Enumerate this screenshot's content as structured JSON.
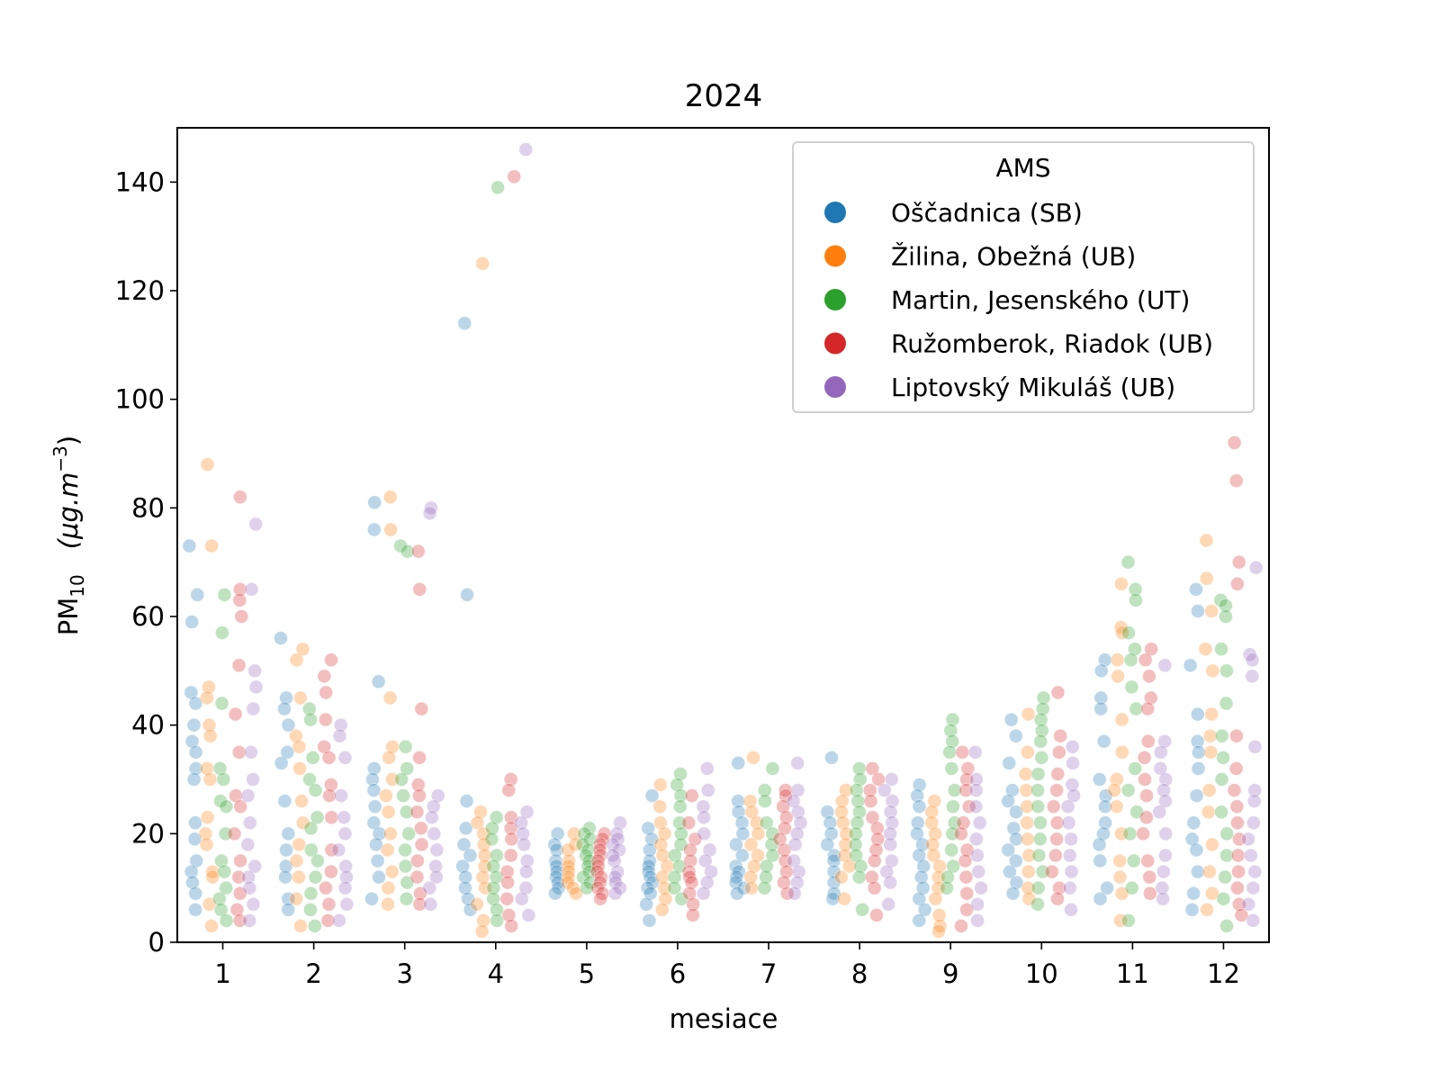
{
  "chart_data": {
    "type": "scatter",
    "subtype": "stripplot",
    "title": "2024",
    "xlabel": "mesiace",
    "ylabel_main": "PM",
    "ylabel_sub": "10",
    "ylabel_units": "(μg.m",
    "ylabel_units_exp": "−3",
    "ylabel_units_close": ")",
    "categories": [
      "1",
      "2",
      "3",
      "4",
      "5",
      "6",
      "7",
      "8",
      "9",
      "10",
      "11",
      "12"
    ],
    "ylim": [
      0,
      150
    ],
    "yticks": [
      0,
      20,
      40,
      60,
      80,
      100,
      120,
      140
    ],
    "grid": false,
    "legend": {
      "title": "AMS",
      "placement": "top-right"
    },
    "series": [
      {
        "name": "Oščadnica (SB)",
        "color": "#1f77b4",
        "values": [
          [
            73,
            64,
            59,
            46,
            44,
            40,
            37,
            35,
            32,
            30,
            22,
            19,
            15,
            13,
            11,
            9,
            6
          ],
          [
            56,
            45,
            43,
            40,
            35,
            33,
            26,
            20,
            17,
            14,
            12,
            8,
            6
          ],
          [
            81,
            76,
            48,
            32,
            30,
            28,
            25,
            22,
            20,
            18,
            15,
            12,
            8
          ],
          [
            114,
            64,
            26,
            21,
            18,
            16,
            14,
            12,
            10,
            8,
            6
          ],
          [
            20,
            18,
            17,
            15,
            14,
            13,
            12,
            11,
            10,
            9
          ],
          [
            27,
            21,
            19,
            17,
            15,
            14,
            13,
            12,
            11,
            10,
            9,
            7,
            4
          ],
          [
            33,
            26,
            24,
            22,
            20,
            18,
            16,
            14,
            13,
            12,
            11,
            10,
            9
          ],
          [
            34,
            24,
            22,
            20,
            18,
            16,
            15,
            13,
            11,
            9,
            8
          ],
          [
            29,
            27,
            25,
            22,
            20,
            18,
            16,
            14,
            12,
            10,
            8,
            6,
            4
          ],
          [
            41,
            38,
            33,
            28,
            26,
            24,
            21,
            19,
            17,
            15,
            13,
            11,
            9
          ],
          [
            52,
            50,
            45,
            43,
            37,
            30,
            27,
            25,
            22,
            20,
            18,
            15,
            10,
            8
          ],
          [
            65,
            61,
            51,
            42,
            37,
            35,
            32,
            27,
            22,
            19,
            17,
            13,
            9,
            6
          ]
        ]
      },
      {
        "name": "Žilina, Obežná (UB)",
        "color": "#ff7f0e",
        "values": [
          [
            88,
            73,
            47,
            45,
            40,
            38,
            32,
            30,
            23,
            20,
            18,
            13,
            12,
            7,
            3
          ],
          [
            54,
            52,
            45,
            38,
            36,
            32,
            26,
            22,
            18,
            15,
            12,
            8,
            3
          ],
          [
            82,
            76,
            45,
            36,
            34,
            30,
            27,
            24,
            20,
            17,
            13,
            10,
            7
          ],
          [
            125,
            24,
            22,
            20,
            18,
            16,
            14,
            12,
            10,
            7,
            4,
            2
          ],
          [
            20,
            18,
            17,
            15,
            14,
            13,
            12,
            11,
            10,
            9
          ],
          [
            29,
            25,
            22,
            20,
            18,
            16,
            14,
            12,
            10,
            8,
            6
          ],
          [
            34,
            26,
            24,
            22,
            20,
            18,
            16,
            14,
            12,
            10
          ],
          [
            28,
            26,
            24,
            22,
            20,
            18,
            16,
            14,
            12,
            8
          ],
          [
            26,
            24,
            22,
            20,
            18,
            16,
            14,
            12,
            10,
            8,
            5,
            3,
            2
          ],
          [
            42,
            35,
            31,
            28,
            25,
            22,
            19,
            16,
            13,
            10,
            8
          ],
          [
            66,
            58,
            57,
            52,
            49,
            41,
            35,
            30,
            28,
            25,
            20,
            15,
            12,
            9,
            4
          ],
          [
            74,
            67,
            61,
            54,
            50,
            42,
            38,
            35,
            28,
            24,
            18,
            13,
            9,
            6
          ]
        ]
      },
      {
        "name": "Martin, Jesenského (UT)",
        "color": "#2ca02c",
        "values": [
          [
            64,
            57,
            44,
            32,
            30,
            26,
            25,
            20,
            15,
            13,
            10,
            8,
            6,
            4
          ],
          [
            43,
            41,
            34,
            30,
            28,
            23,
            21,
            17,
            15,
            12,
            9,
            6,
            3
          ],
          [
            73,
            72,
            36,
            32,
            30,
            27,
            24,
            20,
            17,
            14,
            11,
            8
          ],
          [
            139,
            23,
            21,
            19,
            16,
            14,
            12,
            10,
            8,
            6,
            4
          ],
          [
            21,
            20,
            19,
            18,
            17,
            16,
            15,
            14,
            13,
            12,
            11,
            10
          ],
          [
            31,
            29,
            27,
            25,
            22,
            20,
            18,
            16,
            14,
            12,
            10,
            8
          ],
          [
            32,
            28,
            26,
            22,
            20,
            18,
            16,
            14,
            12,
            10
          ],
          [
            32,
            30,
            28,
            26,
            24,
            22,
            20,
            18,
            16,
            14,
            12,
            6
          ],
          [
            41,
            39,
            37,
            35,
            32,
            28,
            25,
            22,
            20,
            17,
            14,
            12,
            10
          ],
          [
            45,
            43,
            41,
            39,
            37,
            34,
            31,
            28,
            25,
            22,
            19,
            16,
            13,
            10,
            7
          ],
          [
            70,
            65,
            63,
            57,
            54,
            52,
            47,
            43,
            32,
            28,
            24,
            20,
            15,
            10,
            4
          ],
          [
            63,
            62,
            60,
            54,
            50,
            44,
            38,
            34,
            30,
            24,
            20,
            16,
            12,
            8,
            3
          ]
        ]
      },
      {
        "name": "Ružomberok, Riadok (UB)",
        "color": "#d62728",
        "values": [
          [
            82,
            65,
            63,
            60,
            51,
            42,
            35,
            27,
            25,
            20,
            15,
            12,
            9,
            6,
            4
          ],
          [
            52,
            49,
            46,
            41,
            36,
            34,
            29,
            27,
            23,
            17,
            13,
            10,
            7,
            4
          ],
          [
            72,
            65,
            43,
            34,
            29,
            27,
            24,
            21,
            18,
            15,
            12,
            9,
            7
          ],
          [
            141,
            30,
            28,
            23,
            21,
            19,
            16,
            13,
            11,
            8,
            5,
            3
          ],
          [
            20,
            19,
            18,
            17,
            16,
            15,
            14,
            13,
            12,
            11,
            10,
            9,
            8
          ],
          [
            27,
            22,
            19,
            17,
            15,
            13,
            12,
            11,
            9,
            7,
            5
          ],
          [
            28,
            27,
            25,
            23,
            21,
            19,
            17,
            15,
            13,
            11,
            9
          ],
          [
            32,
            30,
            28,
            26,
            23,
            21,
            19,
            17,
            15,
            12,
            10,
            5
          ],
          [
            35,
            32,
            30,
            28,
            25,
            22,
            20,
            17,
            15,
            12,
            9,
            6,
            3
          ],
          [
            46,
            38,
            35,
            31,
            28,
            25,
            22,
            19,
            16,
            13,
            10,
            8
          ],
          [
            54,
            52,
            49,
            45,
            43,
            37,
            34,
            30,
            27,
            23,
            20,
            15,
            12,
            9
          ],
          [
            92,
            85,
            70,
            66,
            38,
            32,
            28,
            25,
            22,
            19,
            16,
            13,
            10,
            7,
            5
          ]
        ]
      },
      {
        "name": "Liptovský Mikuláš (UB)",
        "color": "#9467bd",
        "values": [
          [
            77,
            65,
            50,
            47,
            43,
            35,
            30,
            27,
            22,
            18,
            14,
            12,
            10,
            7,
            4
          ],
          [
            40,
            38,
            34,
            27,
            23,
            20,
            17,
            14,
            12,
            10,
            7,
            4
          ],
          [
            80,
            79,
            27,
            25,
            23,
            20,
            17,
            14,
            12,
            10,
            7
          ],
          [
            146,
            24,
            22,
            20,
            18,
            15,
            13,
            10,
            8,
            5
          ],
          [
            22,
            20,
            19,
            18,
            17,
            16,
            15,
            13,
            12,
            11,
            10,
            9
          ],
          [
            32,
            28,
            25,
            23,
            20,
            17,
            15,
            13,
            11,
            9
          ],
          [
            33,
            28,
            26,
            24,
            22,
            20,
            18,
            15,
            13,
            11,
            9
          ],
          [
            30,
            28,
            26,
            24,
            22,
            20,
            18,
            15,
            13,
            11,
            7
          ],
          [
            35,
            30,
            28,
            25,
            22,
            19,
            16,
            13,
            10,
            7,
            4
          ],
          [
            36,
            33,
            29,
            27,
            25,
            22,
            19,
            16,
            13,
            10,
            6
          ],
          [
            51,
            37,
            35,
            32,
            30,
            28,
            26,
            24,
            20,
            16,
            13,
            10,
            8
          ],
          [
            69,
            53,
            52,
            49,
            36,
            28,
            26,
            22,
            19,
            16,
            13,
            10,
            7,
            4
          ]
        ]
      }
    ]
  }
}
